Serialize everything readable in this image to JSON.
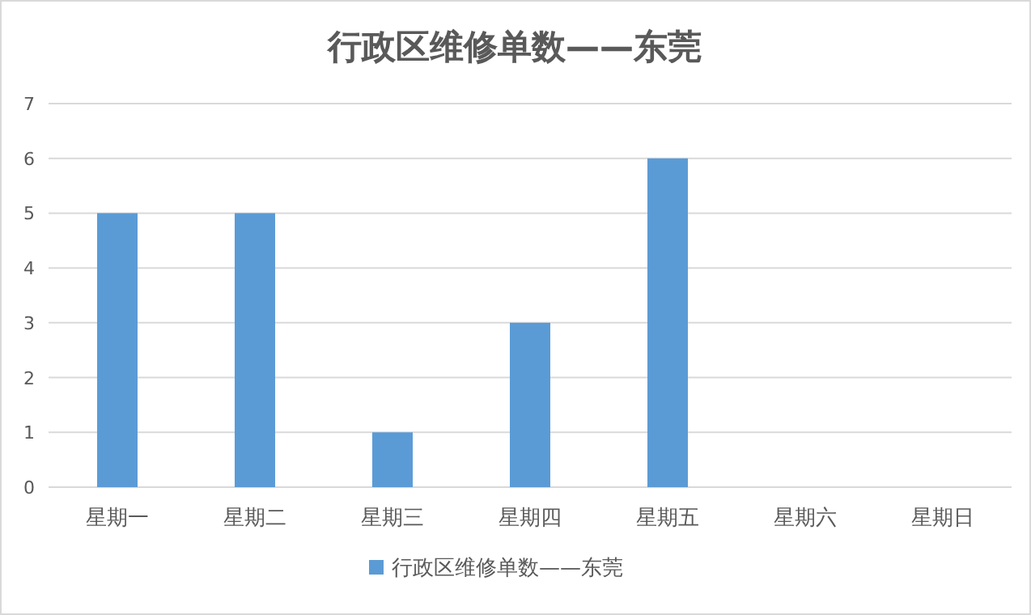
{
  "chart_data": {
    "type": "bar",
    "title": "行政区维修单数——东莞",
    "categories": [
      "星期一",
      "星期二",
      "星期三",
      "星期四",
      "星期五",
      "星期六",
      "星期日"
    ],
    "series": [
      {
        "name": "行政区维修单数——东莞",
        "color": "#5b9bd5",
        "values": [
          5,
          5,
          1,
          3,
          6,
          0,
          0
        ]
      }
    ],
    "ylim": [
      0,
      7
    ],
    "yticks": [
      0,
      1,
      2,
      3,
      4,
      5,
      6,
      7
    ],
    "grid": "y",
    "legend": "bottom"
  }
}
